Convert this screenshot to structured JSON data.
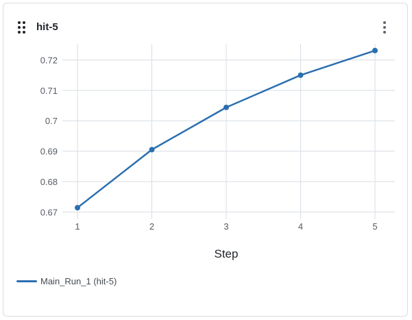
{
  "panel": {
    "title": "hit-5",
    "drag_icon": "drag-grid-icon",
    "menu_icon": "kebab-menu-icon"
  },
  "colors": {
    "series": "#2a6fb0",
    "grid": "#d8dde3",
    "tick_text": "#555b63"
  },
  "chart_data": {
    "type": "line",
    "title": "",
    "xlabel": "Step",
    "ylabel": "",
    "x": [
      1,
      2,
      3,
      4,
      5
    ],
    "xticks": [
      "1",
      "2",
      "3",
      "4",
      "5"
    ],
    "yticks": [
      "0.67",
      "0.68",
      "0.69",
      "0.7",
      "0.71",
      "0.72"
    ],
    "ylim": [
      0.6676,
      0.7253
    ],
    "grid": true,
    "legend_position": "bottom-left",
    "series": [
      {
        "name": "Main_Run_1 (hit-5)",
        "values": [
          0.6714,
          0.6905,
          0.7044,
          0.715,
          0.7231
        ]
      }
    ]
  }
}
